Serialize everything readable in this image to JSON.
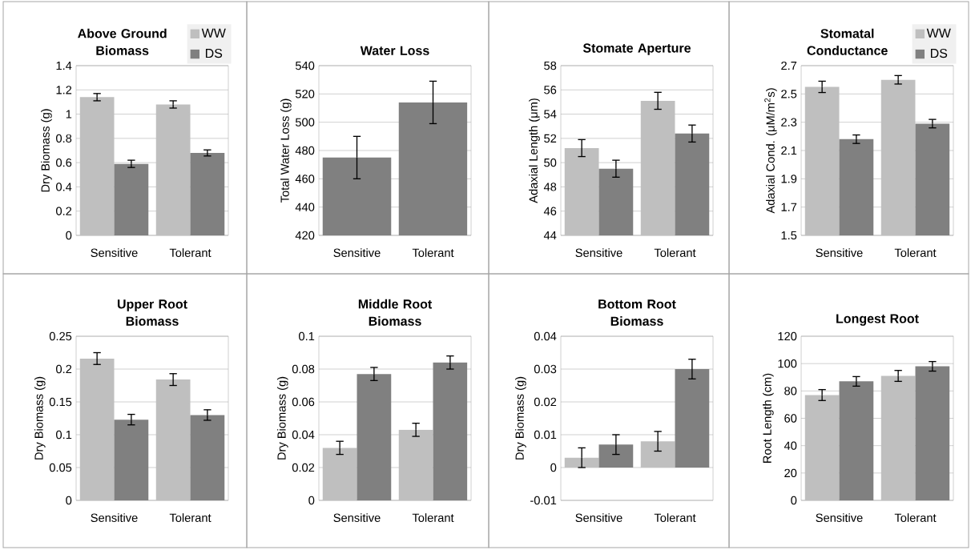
{
  "chart_data": [
    {
      "type": "bar",
      "title": "Above Ground Biomass",
      "ylabel": "Dry Biomass (g)",
      "categories": [
        "Sensitive",
        "Tolerant"
      ],
      "series": [
        {
          "name": "WW",
          "color": "#bfbfbf",
          "values": [
            1.14,
            1.08
          ],
          "errors": [
            0.03,
            0.03
          ]
        },
        {
          "name": "DS",
          "color": "#808080",
          "values": [
            0.59,
            0.68
          ],
          "errors": [
            0.03,
            0.025
          ]
        }
      ],
      "ylim": [
        0,
        1.4
      ],
      "yticks": [
        0,
        0.2,
        0.4,
        0.6,
        0.8,
        1,
        1.2,
        1.4
      ],
      "grid": "y",
      "legend": "top right"
    },
    {
      "type": "bar",
      "title": "Water Loss",
      "ylabel": "Total Water Loss (g)",
      "categories": [
        "Sensitive",
        "Tolerant"
      ],
      "series": [
        {
          "color": "#808080",
          "values": [
            475,
            514
          ],
          "errors": [
            15,
            15
          ]
        }
      ],
      "ylim": [
        420,
        540
      ],
      "yticks": [
        420,
        440,
        460,
        480,
        500,
        520,
        540
      ],
      "grid": "y"
    },
    {
      "type": "bar",
      "title": "Stomate Aperture",
      "ylabel": "Adaxial Length (μm)",
      "categories": [
        "Sensitive",
        "Tolerant"
      ],
      "series": [
        {
          "color": "#bfbfbf",
          "values": [
            51.2,
            55.1
          ],
          "errors": [
            0.7,
            0.7
          ]
        },
        {
          "color": "#808080",
          "values": [
            49.5,
            52.4
          ],
          "errors": [
            0.7,
            0.7
          ]
        }
      ],
      "ylim": [
        44,
        58
      ],
      "yticks": [
        44,
        46,
        48,
        50,
        52,
        54,
        56,
        58
      ],
      "grid": "y"
    },
    {
      "type": "bar",
      "title": "Stomatal Conductance",
      "ylabel": "Adaxial Cond.  (μM/m$^{2}$s)",
      "categories": [
        "Sensitive",
        "Tolerant"
      ],
      "series": [
        {
          "name": "WW",
          "color": "#bfbfbf",
          "values": [
            2.55,
            2.6
          ],
          "errors": [
            0.04,
            0.03
          ]
        },
        {
          "name": "DS",
          "color": "#808080",
          "values": [
            2.18,
            2.29
          ],
          "errors": [
            0.03,
            0.03
          ]
        }
      ],
      "ylim": [
        1.5,
        2.7
      ],
      "yticks": [
        1.5,
        1.7,
        1.9,
        2.1,
        2.3,
        2.5,
        2.7
      ],
      "grid": "y",
      "legend": "top right"
    },
    {
      "type": "bar",
      "title": "Upper Root Biomass",
      "ylabel": "Dry Biomass (g)",
      "categories": [
        "Sensitive",
        "Tolerant"
      ],
      "series": [
        {
          "color": "#bfbfbf",
          "values": [
            0.216,
            0.184
          ],
          "errors": [
            0.009,
            0.009
          ]
        },
        {
          "color": "#808080",
          "values": [
            0.123,
            0.13
          ],
          "errors": [
            0.008,
            0.008
          ]
        }
      ],
      "ylim": [
        0,
        0.25
      ],
      "yticks": [
        0,
        0.05,
        0.1,
        0.15,
        0.2,
        0.25
      ],
      "grid": "y"
    },
    {
      "type": "bar",
      "title": "Middle Root Biomass",
      "ylabel": "Dry Biomass (g)",
      "categories": [
        "Sensitive",
        "Tolerant"
      ],
      "series": [
        {
          "color": "#bfbfbf",
          "values": [
            0.032,
            0.043
          ],
          "errors": [
            0.004,
            0.004
          ]
        },
        {
          "color": "#808080",
          "values": [
            0.077,
            0.084
          ],
          "errors": [
            0.004,
            0.004
          ]
        }
      ],
      "ylim": [
        0,
        0.1
      ],
      "yticks": [
        0,
        0.02,
        0.04,
        0.06,
        0.08,
        0.1
      ],
      "grid": "y"
    },
    {
      "type": "bar",
      "title": "Bottom Root Biomass",
      "ylabel": "Dry Biomass (g)",
      "categories": [
        "Sensitive",
        "Tolerant"
      ],
      "series": [
        {
          "color": "#bfbfbf",
          "values": [
            0.003,
            0.008
          ],
          "errors": [
            0.003,
            0.003
          ]
        },
        {
          "color": "#808080",
          "values": [
            0.007,
            0.03
          ],
          "errors": [
            0.003,
            0.003
          ]
        }
      ],
      "ylim": [
        -0.01,
        0.04
      ],
      "yticks": [
        -0.01,
        0,
        0.01,
        0.02,
        0.03,
        0.04
      ],
      "grid": "y"
    },
    {
      "type": "bar",
      "title": "Longest Root",
      "ylabel": "Root Length (cm)",
      "categories": [
        "Sensitive",
        "Tolerant"
      ],
      "series": [
        {
          "color": "#bfbfbf",
          "values": [
            77,
            91
          ],
          "errors": [
            4,
            4
          ]
        },
        {
          "color": "#808080",
          "values": [
            87,
            98
          ],
          "errors": [
            3.5,
            3.5
          ]
        }
      ],
      "ylim": [
        0,
        120
      ],
      "yticks": [
        0,
        20,
        40,
        60,
        80,
        100,
        120
      ],
      "grid": "y"
    }
  ]
}
